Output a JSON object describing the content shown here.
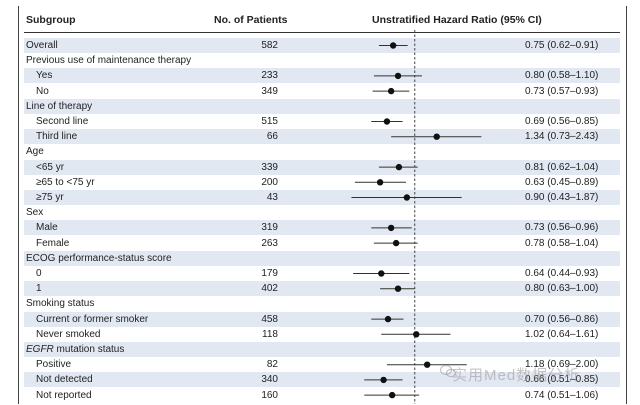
{
  "headers": {
    "subgroup": "Subgroup",
    "patients": "No. of Patients",
    "hr": "Unstratified Hazard Ratio (95% CI)"
  },
  "rows": [
    {
      "label": "Overall",
      "type": "item",
      "indent": false,
      "n": "582",
      "hr_text": "0.75 (0.62–0.91)"
    },
    {
      "label": "Previous use of maintenance therapy",
      "type": "group"
    },
    {
      "label": "Yes",
      "type": "item",
      "indent": true,
      "n": "233",
      "hr_text": "0.80 (0.58–1.10)"
    },
    {
      "label": "No",
      "type": "item",
      "indent": true,
      "n": "349",
      "hr_text": "0.73 (0.57–0.93)"
    },
    {
      "label": "Line of therapy",
      "type": "group"
    },
    {
      "label": "Second line",
      "type": "item",
      "indent": true,
      "n": "515",
      "hr_text": "0.69 (0.56–0.85)"
    },
    {
      "label": "Third line",
      "type": "item",
      "indent": true,
      "n": "66",
      "hr_text": "1.34 (0.73–2.43)"
    },
    {
      "label": "Age",
      "type": "group"
    },
    {
      "label": "<65 yr",
      "type": "item",
      "indent": true,
      "n": "339",
      "hr_text": "0.81 (0.62–1.04)"
    },
    {
      "label": "≥65 to <75 yr",
      "type": "item",
      "indent": true,
      "n": "200",
      "hr_text": "0.63 (0.45–0.89)"
    },
    {
      "label": "≥75 yr",
      "type": "item",
      "indent": true,
      "n": "43",
      "hr_text": "0.90 (0.43–1.87)"
    },
    {
      "label": "Sex",
      "type": "group"
    },
    {
      "label": "Male",
      "type": "item",
      "indent": true,
      "n": "319",
      "hr_text": "0.73 (0.56–0.96)"
    },
    {
      "label": "Female",
      "type": "item",
      "indent": true,
      "n": "263",
      "hr_text": "0.78 (0.58–1.04)"
    },
    {
      "label": "ECOG performance-status score",
      "type": "group"
    },
    {
      "label": "0",
      "type": "item",
      "indent": true,
      "n": "179",
      "hr_text": "0.64 (0.44–0.93)"
    },
    {
      "label": "1",
      "type": "item",
      "indent": true,
      "n": "402",
      "hr_text": "0.80 (0.63–1.00)"
    },
    {
      "label": "Smoking status",
      "type": "group"
    },
    {
      "label": "Current or former smoker",
      "type": "item",
      "indent": true,
      "n": "458",
      "hr_text": "0.70 (0.56–0.86)"
    },
    {
      "label": "Never smoked",
      "type": "item",
      "indent": true,
      "n": "118",
      "hr_text": "1.02 (0.64–1.61)"
    },
    {
      "label": "EGFR mutation status",
      "type": "group"
    },
    {
      "label": "Positive",
      "type": "item",
      "indent": true,
      "n": "82",
      "hr_text": "1.18 (0.69–2.00)"
    },
    {
      "label": "Not detected",
      "type": "item",
      "indent": true,
      "n": "340",
      "hr_text": "0.66 (0.51–0.85)"
    },
    {
      "label": "Not reported",
      "type": "item",
      "indent": true,
      "n": "160",
      "hr_text": "0.74 (0.51–1.06)"
    }
  ],
  "chart_data": {
    "type": "forest",
    "scale": "log",
    "reference_line": 1.0,
    "xlim": [
      0.35,
      2.8
    ],
    "series": [
      {
        "subgroup": "Overall",
        "hr": 0.75,
        "lo": 0.62,
        "hi": 0.91
      },
      {
        "subgroup": "Previous use of maintenance therapy: Yes",
        "hr": 0.8,
        "lo": 0.58,
        "hi": 1.1
      },
      {
        "subgroup": "Previous use of maintenance therapy: No",
        "hr": 0.73,
        "lo": 0.57,
        "hi": 0.93
      },
      {
        "subgroup": "Line of therapy: Second line",
        "hr": 0.69,
        "lo": 0.56,
        "hi": 0.85
      },
      {
        "subgroup": "Line of therapy: Third line",
        "hr": 1.34,
        "lo": 0.73,
        "hi": 2.43
      },
      {
        "subgroup": "Age: <65 yr",
        "hr": 0.81,
        "lo": 0.62,
        "hi": 1.04
      },
      {
        "subgroup": "Age: ≥65 to <75 yr",
        "hr": 0.63,
        "lo": 0.45,
        "hi": 0.89
      },
      {
        "subgroup": "Age: ≥75 yr",
        "hr": 0.9,
        "lo": 0.43,
        "hi": 1.87
      },
      {
        "subgroup": "Sex: Male",
        "hr": 0.73,
        "lo": 0.56,
        "hi": 0.96
      },
      {
        "subgroup": "Sex: Female",
        "hr": 0.78,
        "lo": 0.58,
        "hi": 1.04
      },
      {
        "subgroup": "ECOG: 0",
        "hr": 0.64,
        "lo": 0.44,
        "hi": 0.93
      },
      {
        "subgroup": "ECOG: 1",
        "hr": 0.8,
        "lo": 0.63,
        "hi": 1.0
      },
      {
        "subgroup": "Smoking: Current or former smoker",
        "hr": 0.7,
        "lo": 0.56,
        "hi": 0.86
      },
      {
        "subgroup": "Smoking: Never smoked",
        "hr": 1.02,
        "lo": 0.64,
        "hi": 1.61
      },
      {
        "subgroup": "EGFR: Positive",
        "hr": 1.18,
        "lo": 0.69,
        "hi": 2.0
      },
      {
        "subgroup": "EGFR: Not detected",
        "hr": 0.66,
        "lo": 0.51,
        "hi": 0.85
      },
      {
        "subgroup": "EGFR: Not reported",
        "hr": 0.74,
        "lo": 0.51,
        "hi": 1.06
      }
    ]
  },
  "watermark": {
    "text": "实用Med数据分析"
  },
  "colors": {
    "shade": "#e2e8f1",
    "marker": "#111111",
    "line": "#333333"
  }
}
